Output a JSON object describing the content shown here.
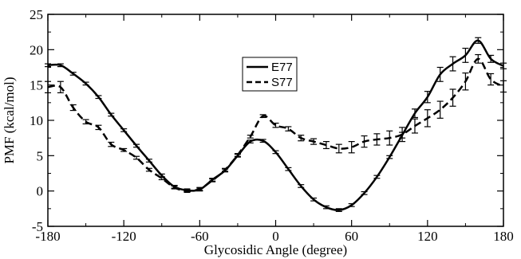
{
  "chart_data": {
    "type": "line",
    "title": "",
    "xlabel": "Glycosidic Angle (degree)",
    "ylabel": "PMF (kcal/mol)",
    "xlim": [
      -180,
      180
    ],
    "ylim": [
      -5,
      25
    ],
    "xticks": [
      -180,
      -120,
      -60,
      0,
      60,
      120,
      180
    ],
    "xtick_labels": [
      "-180",
      "-120",
      "-60",
      "0",
      "60",
      "120",
      "180"
    ],
    "yticks": [
      -5,
      0,
      5,
      10,
      15,
      20,
      25
    ],
    "ytick_labels": [
      "-5",
      "0",
      "5",
      "10",
      "15",
      "20",
      "25"
    ],
    "legend_position": "top-center",
    "grid": false,
    "series": [
      {
        "name": "E77",
        "style": "solid",
        "color": "#000000",
        "x": [
          -180,
          -170,
          -160,
          -150,
          -140,
          -130,
          -120,
          -110,
          -100,
          -90,
          -80,
          -70,
          -60,
          -50,
          -40,
          -30,
          -20,
          -10,
          0,
          10,
          20,
          30,
          40,
          50,
          60,
          70,
          80,
          90,
          100,
          110,
          120,
          130,
          140,
          150,
          160,
          170,
          180
        ],
        "y": [
          17.8,
          17.8,
          16.6,
          15.2,
          13.3,
          10.8,
          8.6,
          6.4,
          4.3,
          2.2,
          0.6,
          0.1,
          0.2,
          1.6,
          2.9,
          5.0,
          7.0,
          7.1,
          5.5,
          3.1,
          0.7,
          -1.2,
          -2.3,
          -2.7,
          -2.0,
          -0.3,
          2.0,
          4.8,
          7.9,
          11.0,
          13.3,
          16.5,
          18.0,
          19.2,
          21.3,
          18.7,
          17.7
        ],
        "error": [
          0.2,
          0.2,
          0.2,
          0.2,
          0.2,
          0.2,
          0.2,
          0.2,
          0.2,
          0.2,
          0.2,
          0.2,
          0.2,
          0.2,
          0.2,
          0.2,
          0.2,
          0.2,
          0.2,
          0.2,
          0.2,
          0.2,
          0.2,
          0.2,
          0.2,
          0.2,
          0.2,
          0.2,
          0.4,
          0.6,
          0.8,
          1.0,
          1.0,
          1.0,
          0.4,
          0.5,
          0.4
        ]
      },
      {
        "name": "S77",
        "style": "dashed",
        "color": "#000000",
        "x": [
          -180,
          -170,
          -160,
          -150,
          -140,
          -130,
          -120,
          -110,
          -100,
          -90,
          -80,
          -70,
          -60,
          -50,
          -40,
          -30,
          -20,
          -10,
          0,
          10,
          20,
          30,
          40,
          50,
          60,
          70,
          80,
          90,
          100,
          110,
          120,
          130,
          140,
          150,
          160,
          170,
          180
        ],
        "y": [
          14.7,
          14.7,
          11.8,
          9.8,
          9.0,
          6.6,
          5.8,
          4.7,
          3.0,
          1.8,
          0.5,
          0.0,
          0.3,
          1.5,
          3.0,
          5.1,
          7.7,
          10.6,
          9.3,
          8.8,
          7.5,
          7.0,
          6.5,
          6.0,
          6.2,
          7.0,
          7.3,
          7.5,
          8.0,
          9.2,
          10.3,
          11.5,
          13.2,
          15.5,
          18.7,
          15.8,
          14.8
        ],
        "error": [
          0.8,
          0.8,
          0.4,
          0.3,
          0.3,
          0.3,
          0.2,
          0.2,
          0.2,
          0.2,
          0.2,
          0.2,
          0.2,
          0.2,
          0.2,
          0.2,
          0.2,
          0.2,
          0.3,
          0.3,
          0.4,
          0.4,
          0.5,
          0.6,
          0.8,
          0.8,
          0.8,
          1.0,
          1.0,
          1.0,
          1.2,
          1.2,
          1.2,
          1.2,
          0.6,
          0.8,
          0.8
        ]
      }
    ]
  }
}
